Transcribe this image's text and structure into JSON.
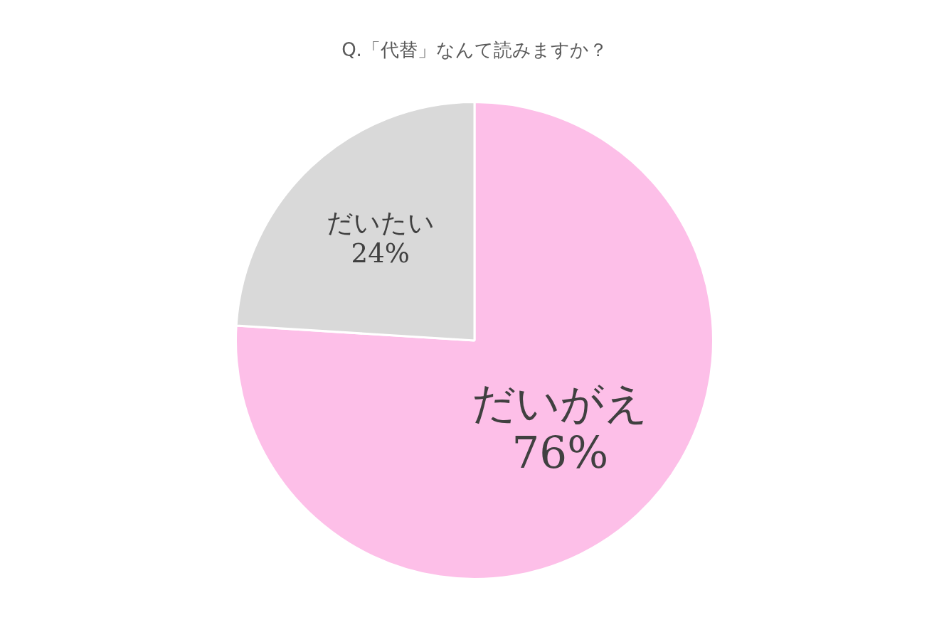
{
  "chart_data": {
    "type": "pie",
    "title": "Q.「代替」なんて読みますか？",
    "categories": [
      "だいがえ",
      "だいたい"
    ],
    "values": [
      76,
      24
    ],
    "value_labels": [
      "76%",
      "24%"
    ],
    "colors": [
      "#fdbfe8",
      "#d9d9d9"
    ],
    "legend": false
  }
}
